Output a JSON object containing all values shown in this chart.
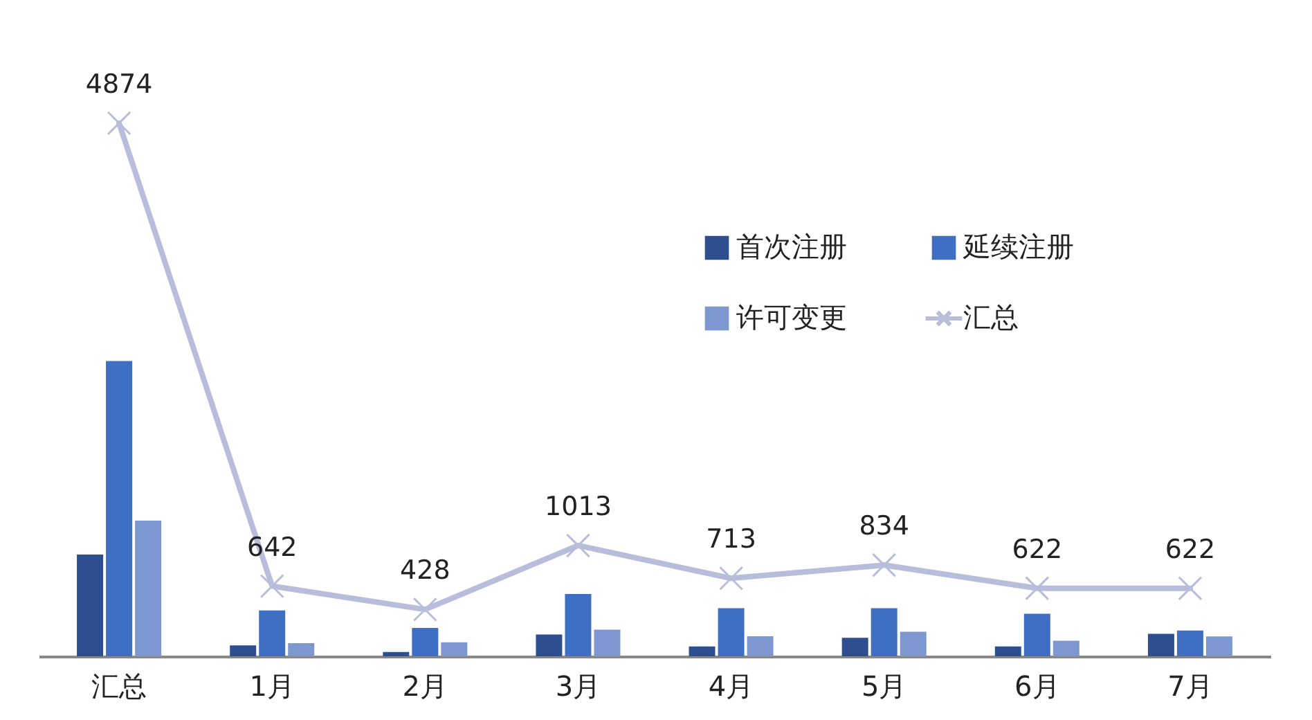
{
  "chart_data": {
    "type": "bar",
    "categories": [
      "汇总",
      "1月",
      "2月",
      "3月",
      "4月",
      "5月",
      "6月",
      "7月"
    ],
    "series": [
      {
        "name": "首次注册",
        "color": "#2e4f8f",
        "values": [
          930,
          100,
          40,
          200,
          90,
          170,
          90,
          205
        ]
      },
      {
        "name": "延续注册",
        "color": "#3f6fc2",
        "values": [
          2700,
          420,
          260,
          570,
          440,
          440,
          390,
          235
        ]
      },
      {
        "name": "许可变更",
        "color": "#7d97d0",
        "values": [
          1240,
          120,
          128,
          243,
          183,
          224,
          142,
          182
        ]
      },
      {
        "name": "汇总",
        "type": "line",
        "color": "#b8bddb",
        "marker": "cross",
        "data_labels": true,
        "values": [
          4874,
          642,
          428,
          1013,
          713,
          834,
          622,
          622
        ]
      }
    ],
    "tick_labels": "x",
    "legend": "top right"
  }
}
